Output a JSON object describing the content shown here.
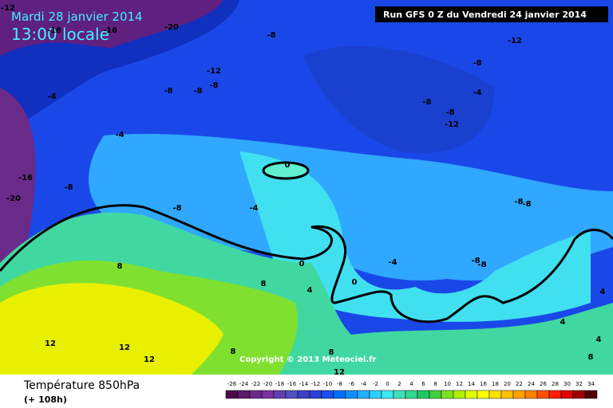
{
  "header": {
    "date": "Mardi 28 janvier 2014",
    "time": "13:00 locale",
    "run": "Run GFS 0 Z du Vendredi 24 janvier 2014"
  },
  "footer": {
    "title": "Température 850hPa",
    "subtitle": "(+ 108h)",
    "copyright": "Copyright © 2013 Meteociel.fr"
  },
  "map_labels": [
    -12,
    -16,
    -16,
    -20,
    -8,
    -12,
    -8,
    -12,
    -8,
    -8,
    -8,
    -4,
    -4,
    -8,
    -8,
    -12,
    -4,
    -16,
    -8,
    -20,
    0,
    -8,
    -4,
    -8,
    -8,
    8,
    0,
    -4,
    -8,
    -8,
    8,
    4,
    0,
    4,
    4,
    4,
    12,
    12,
    12,
    8,
    8,
    12,
    8
  ],
  "legend": {
    "ticks": [
      -26,
      -24,
      -22,
      -20,
      -18,
      -16,
      -14,
      -12,
      -10,
      -8,
      -6,
      -4,
      -2,
      0,
      2,
      4,
      6,
      8,
      10,
      12,
      14,
      16,
      18,
      20,
      22,
      24,
      26,
      28,
      30,
      32,
      34
    ],
    "colors": [
      "#4b0b4b",
      "#5a1a6a",
      "#6a2a8a",
      "#7a30a0",
      "#6040b0",
      "#5050c0",
      "#3a40c8",
      "#2a40d8",
      "#1a50f0",
      "#0070ff",
      "#1090ff",
      "#20b0ff",
      "#30d0ff",
      "#40e8f0",
      "#40e0c0",
      "#30d890",
      "#20c860",
      "#40d040",
      "#80e020",
      "#b0f000",
      "#e0ff00",
      "#ffff00",
      "#ffe000",
      "#ffc000",
      "#ffa000",
      "#ff8000",
      "#ff5000",
      "#ff2000",
      "#e00000",
      "#a00000",
      "#500000"
    ]
  }
}
